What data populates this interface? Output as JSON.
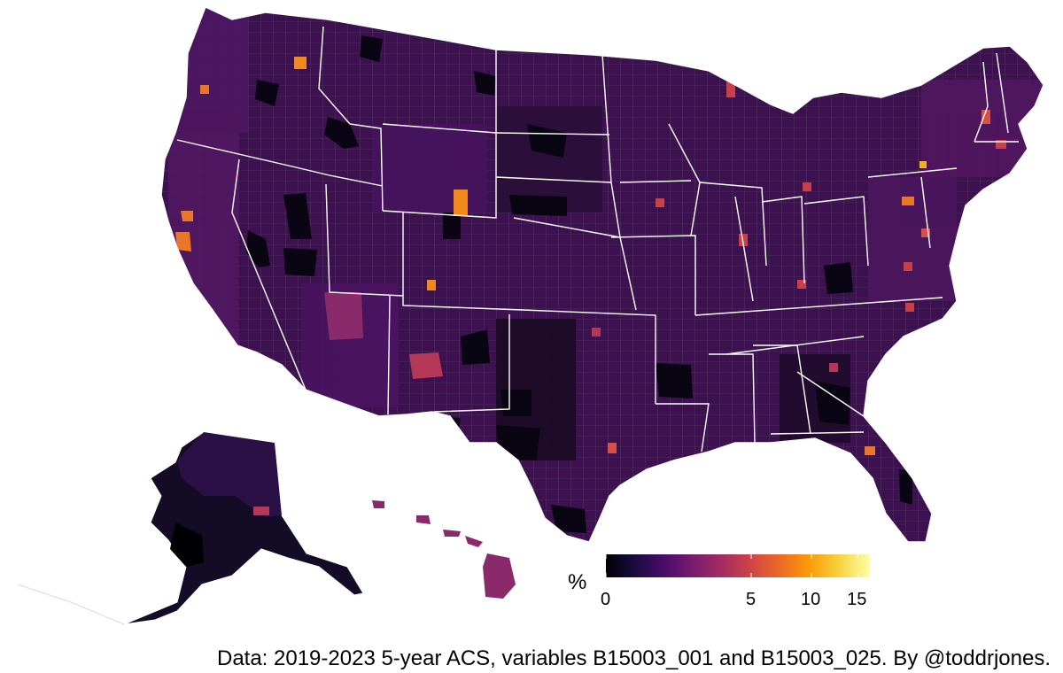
{
  "legend": {
    "title": "%",
    "ticks": [
      {
        "label": "0",
        "value": 0
      },
      {
        "label": "5",
        "value": 5
      },
      {
        "label": "10",
        "value": 10
      },
      {
        "label": "15",
        "value": 15
      }
    ],
    "range": [
      0,
      16.5
    ],
    "scale": "sqrt",
    "palette": [
      "#000004",
      "#1b0c41",
      "#4a0c6b",
      "#781c6d",
      "#a52c60",
      "#cf4446",
      "#ed6925",
      "#fb9b06",
      "#f7d13d",
      "#fcffa4"
    ]
  },
  "caption": "Data: 2019-2023 5-year ACS, variables B15003_001 and B15003_025. By @toddrjones.",
  "colors": {
    "base_fill": "#3d1150",
    "state_border": "#ffffff",
    "county_border": "#5a4a6a",
    "hotspot_orange": "#f08a1e",
    "hotspot_red": "#c8404a",
    "dark_county": "#0a0512"
  }
}
